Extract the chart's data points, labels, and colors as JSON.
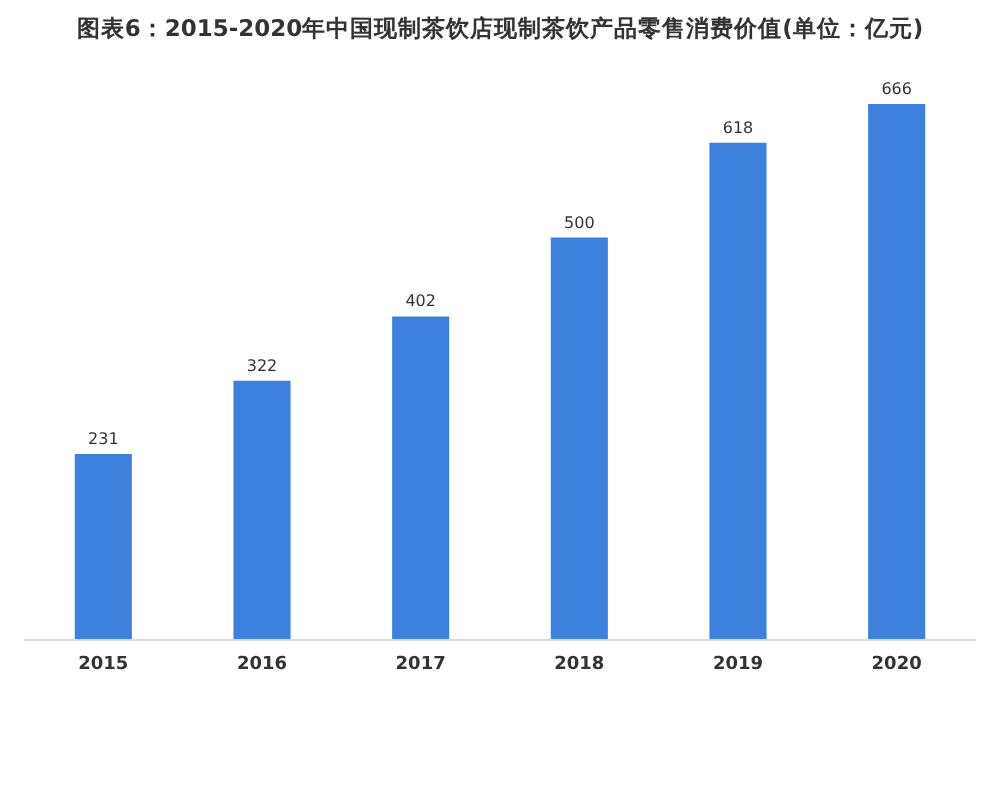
{
  "chart_data": {
    "type": "bar",
    "title": "图表6：2015-2020年中国现制茶饮店现制茶饮产品零售消费价值(单位：亿元)",
    "categories": [
      "2015",
      "2016",
      "2017",
      "2018",
      "2019",
      "2020"
    ],
    "values": [
      231,
      322,
      402,
      500,
      618,
      666
    ],
    "color": "#3e81dc",
    "data_labels": true
  }
}
